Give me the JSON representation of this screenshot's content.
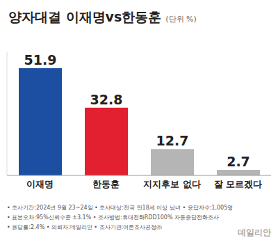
{
  "chart_data": {
    "type": "bar",
    "title": "양자대결 이재명vs한동훈",
    "subtitle": "(단위 %)",
    "categories": [
      "이재명",
      "한동훈",
      "지지후보 없다",
      "잘 모르겠다"
    ],
    "values": [
      51.9,
      32.8,
      12.7,
      2.7
    ],
    "colors": [
      "#1c4fa1",
      "#e3202f",
      "#b5b5b5",
      "#b5b5b5"
    ],
    "ylim": [
      0,
      60
    ],
    "data_labels": true,
    "tick_labels": "x",
    "grid": false,
    "annotations": [
      "• 조사기간:2024년 9월 23~24일  • 조사대상:전국 만18세 이상 남녀  • 응답자수:1,005명",
      "• 표본오차:95%신뢰수준 ±3.1%  • 조사방법:휴대전화RDD100% 자동응답전화조사",
      "• 응답률:2.4%  • 의뢰자:데일리안  • 조사기관:여론조사공정㈜"
    ],
    "source": "데일리안"
  }
}
